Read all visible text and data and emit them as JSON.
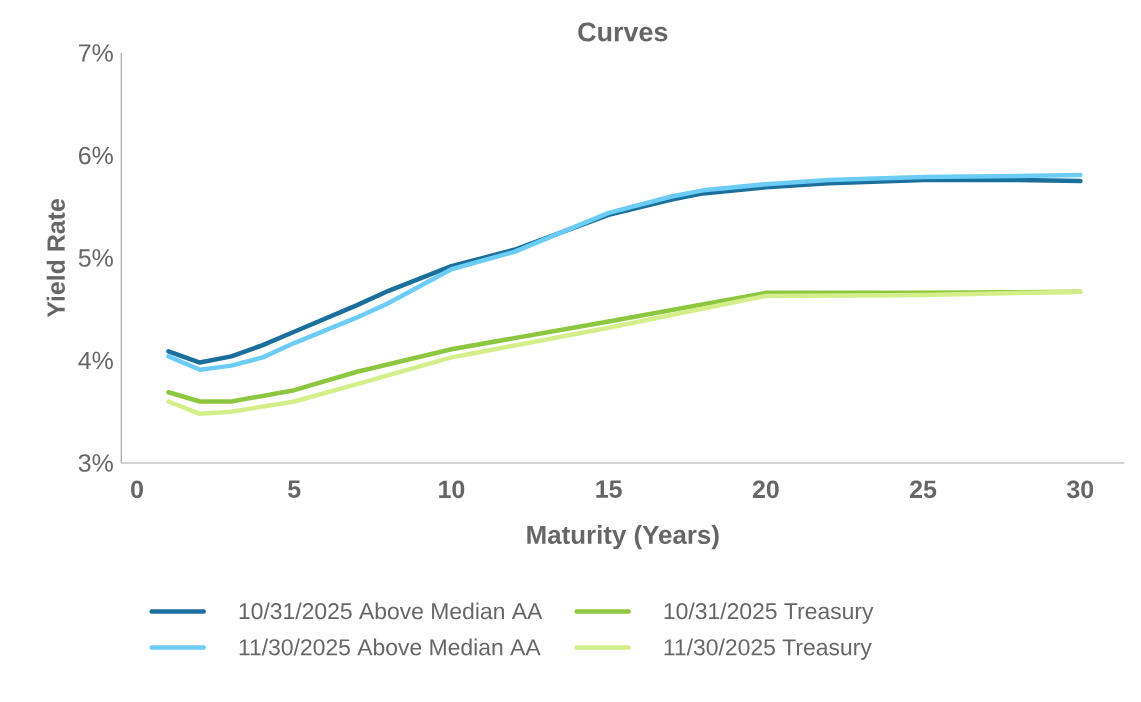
{
  "chart_data": {
    "type": "line",
    "title": "Curves",
    "xlabel": "Maturity (Years)",
    "ylabel": "Yield Rate",
    "xlim": [
      -0.5,
      31.4
    ],
    "xticks": [
      0,
      5,
      10,
      15,
      20,
      25,
      30
    ],
    "ylim": [
      3,
      7
    ],
    "yticks": [
      {
        "value": 3,
        "label": "3%"
      },
      {
        "value": 4,
        "label": "4%"
      },
      {
        "value": 5,
        "label": "5%"
      },
      {
        "value": 6,
        "label": "6%"
      },
      {
        "value": 7,
        "label": "7%"
      }
    ],
    "grid": false,
    "legend": "bottom",
    "marker": "none",
    "line_style": "solid",
    "series": [
      {
        "name": "10/31/2025 Above Median AA",
        "color": "#1a6f9c",
        "x": [
          1,
          2,
          3,
          4,
          5,
          7,
          8,
          10,
          12,
          15,
          17,
          18,
          20,
          22,
          25,
          28,
          30
        ],
        "values": [
          4.09,
          3.98,
          4.04,
          4.15,
          4.28,
          4.54,
          4.68,
          4.92,
          5.08,
          5.42,
          5.57,
          5.63,
          5.69,
          5.73,
          5.76,
          5.76,
          5.75
        ]
      },
      {
        "name": "11/30/2025 Above Median AA",
        "color": "#6bcdf5",
        "x": [
          1,
          2,
          3,
          4,
          5,
          7,
          8,
          10,
          12,
          15,
          17,
          18,
          20,
          22,
          25,
          28,
          30
        ],
        "values": [
          4.04,
          3.91,
          3.95,
          4.03,
          4.17,
          4.42,
          4.56,
          4.89,
          5.06,
          5.44,
          5.6,
          5.66,
          5.72,
          5.76,
          5.79,
          5.8,
          5.81
        ]
      },
      {
        "name": "10/31/2025 Treasury",
        "color": "#8dc63f",
        "x": [
          1,
          2,
          3,
          5,
          7,
          10,
          15,
          20,
          25,
          30
        ],
        "values": [
          3.69,
          3.6,
          3.6,
          3.71,
          3.89,
          4.11,
          4.38,
          4.66,
          4.66,
          4.67
        ]
      },
      {
        "name": "11/30/2025 Treasury",
        "color": "#d4ef8a",
        "x": [
          1,
          2,
          3,
          5,
          7,
          10,
          15,
          20,
          25,
          30
        ],
        "values": [
          3.6,
          3.48,
          3.5,
          3.6,
          3.77,
          4.03,
          4.32,
          4.63,
          4.64,
          4.67
        ]
      }
    ]
  }
}
